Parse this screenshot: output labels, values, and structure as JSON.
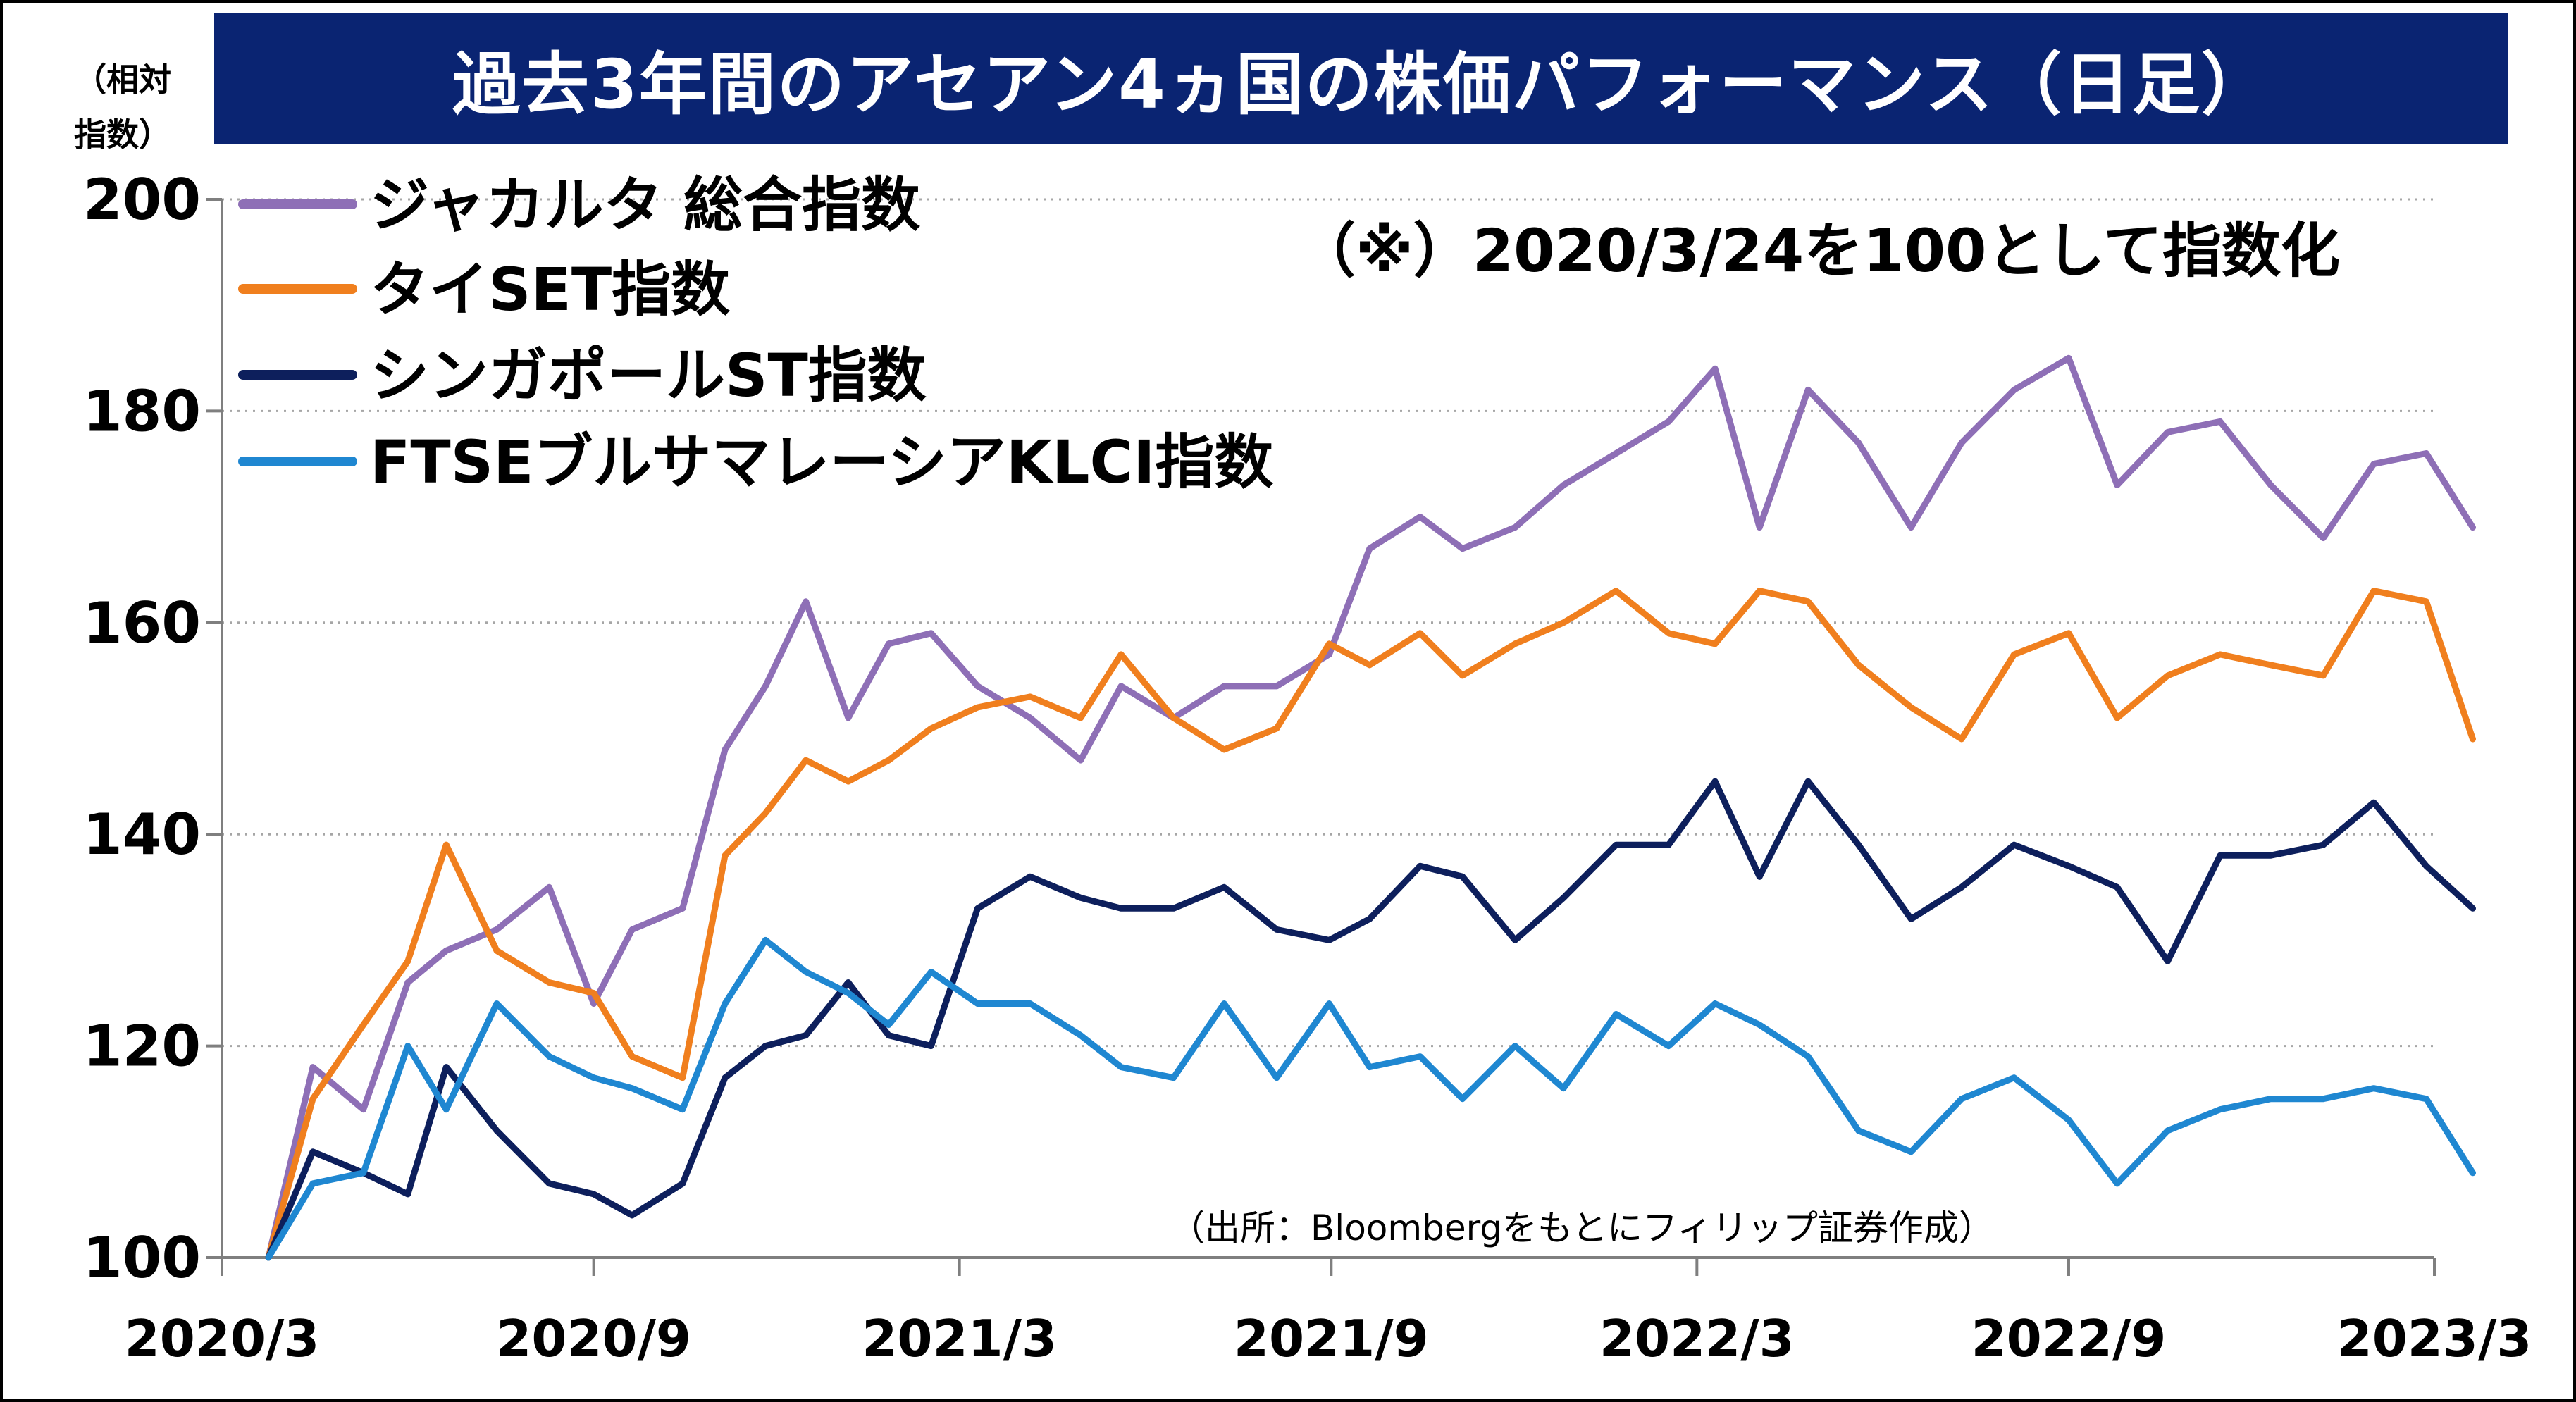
{
  "header": {
    "title": "過去3年間のアセアン4ヵ国の株価パフォーマンス（日足）",
    "unit_label_line1": "（相対",
    "unit_label_line2": "指数）"
  },
  "note": "（※）2020/3/24を100として指数化",
  "source": "（出所：Bloombergをもとにフィリップ証券作成）",
  "chart_data": {
    "type": "line",
    "title": "過去3年間のアセアン4ヵ国の株価パフォーマンス（日足）",
    "xlabel": "",
    "ylabel": "（相対指数）",
    "x_ticks": [
      "2020/3",
      "2020/9",
      "2021/3",
      "2021/9",
      "2022/3",
      "2022/9",
      "2023/3"
    ],
    "y_ticks": [
      100,
      120,
      140,
      160,
      180,
      200
    ],
    "ylim": [
      100,
      200
    ],
    "grid": "horizontal dotted",
    "legend": "top-left",
    "x": [
      "2020/3/24",
      "2020/4/15",
      "2020/5/10",
      "2020/6/1",
      "2020/6/20",
      "2020/7/15",
      "2020/8/10",
      "2020/9/1",
      "2020/9/20",
      "2020/10/15",
      "2020/11/5",
      "2020/11/25",
      "2020/12/15",
      "2021/1/5",
      "2021/1/25",
      "2021/2/15",
      "2021/3/10",
      "2021/4/5",
      "2021/4/30",
      "2021/5/20",
      "2021/6/15",
      "2021/7/10",
      "2021/8/5",
      "2021/8/31",
      "2021/9/20",
      "2021/10/15",
      "2021/11/5",
      "2021/12/1",
      "2021/12/25",
      "2022/1/20",
      "2022/2/15",
      "2022/3/10",
      "2022/4/1",
      "2022/4/25",
      "2022/5/20",
      "2022/6/15",
      "2022/7/10",
      "2022/8/5",
      "2022/9/1",
      "2022/9/25",
      "2022/10/20",
      "2022/11/15",
      "2022/12/10",
      "2023/1/5",
      "2023/1/30",
      "2023/2/25",
      "2023/3/20"
    ],
    "series": [
      {
        "name": "ジャカルタ 総合指数",
        "color": "#8e6fb6",
        "values": [
          100,
          118,
          114,
          126,
          129,
          131,
          135,
          124,
          131,
          133,
          148,
          154,
          162,
          151,
          158,
          159,
          154,
          151,
          147,
          154,
          151,
          154,
          154,
          157,
          167,
          170,
          167,
          169,
          173,
          176,
          179,
          184,
          169,
          182,
          177,
          169,
          177,
          182,
          185,
          173,
          178,
          179,
          173,
          168,
          175,
          176,
          169
        ]
      },
      {
        "name": "タイSET指数",
        "color": "#f07f1e",
        "values": [
          100,
          115,
          122,
          128,
          139,
          129,
          126,
          125,
          119,
          117,
          138,
          142,
          147,
          145,
          147,
          150,
          152,
          153,
          151,
          157,
          151,
          148,
          150,
          158,
          156,
          159,
          155,
          158,
          160,
          163,
          159,
          158,
          163,
          162,
          156,
          152,
          149,
          157,
          159,
          151,
          155,
          157,
          156,
          155,
          163,
          162,
          149
        ]
      },
      {
        "name": "シンガポールST指数",
        "color": "#0d1f5c",
        "values": [
          100,
          110,
          108,
          106,
          118,
          112,
          107,
          106,
          104,
          107,
          117,
          120,
          121,
          126,
          121,
          120,
          133,
          136,
          134,
          133,
          133,
          135,
          131,
          130,
          132,
          137,
          136,
          130,
          134,
          139,
          139,
          145,
          136,
          145,
          139,
          132,
          135,
          139,
          137,
          135,
          128,
          138,
          138,
          139,
          143,
          137,
          133
        ]
      },
      {
        "name": "FTSEブルサマレーシアKLCI指数",
        "color": "#1f87d1",
        "values": [
          100,
          107,
          108,
          120,
          114,
          124,
          119,
          117,
          116,
          114,
          124,
          130,
          127,
          125,
          122,
          127,
          124,
          124,
          121,
          118,
          117,
          124,
          117,
          124,
          118,
          119,
          115,
          120,
          116,
          123,
          120,
          124,
          122,
          119,
          112,
          110,
          115,
          117,
          113,
          107,
          112,
          114,
          115,
          115,
          116,
          115,
          108
        ]
      }
    ]
  }
}
